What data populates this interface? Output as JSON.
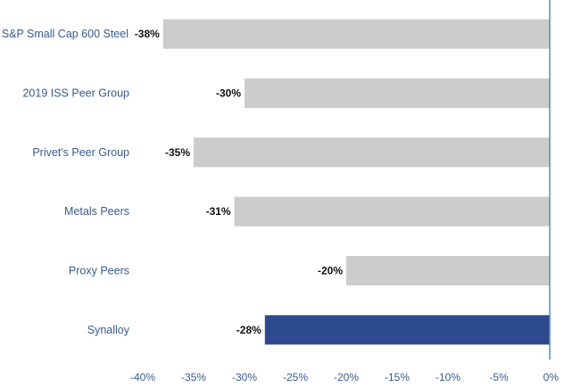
{
  "colors": {
    "bar_default": "#cccccc",
    "bar_highlight": "#2e4a8e",
    "axis_line": "#4a90c8",
    "category_text": "#3a5a8c",
    "value_text": "#111111"
  },
  "chart_data": {
    "type": "bar",
    "orientation": "horizontal",
    "title": "",
    "xlabel": "",
    "ylabel": "",
    "categories": [
      "S&P Small Cap 600 Steel",
      "2019 ISS Peer Group",
      "Privet's Peer Group",
      "Metals Peers",
      "Proxy Peers",
      "Synalloy"
    ],
    "values": [
      -38,
      -30,
      -35,
      -31,
      -20,
      -28
    ],
    "value_labels": [
      "-38%",
      "-30%",
      "-35%",
      "-31%",
      "-20%",
      "-28%"
    ],
    "highlight_index": 5,
    "xlim": [
      -40,
      0
    ],
    "x_ticks": [
      -40,
      -35,
      -30,
      -25,
      -20,
      -15,
      -10,
      -5,
      0
    ],
    "x_tick_labels": [
      "-40%",
      "-35%",
      "-30%",
      "-25%",
      "-20%",
      "-15%",
      "-10%",
      "-5%",
      "0%"
    ],
    "grid": false,
    "legend": "none"
  }
}
